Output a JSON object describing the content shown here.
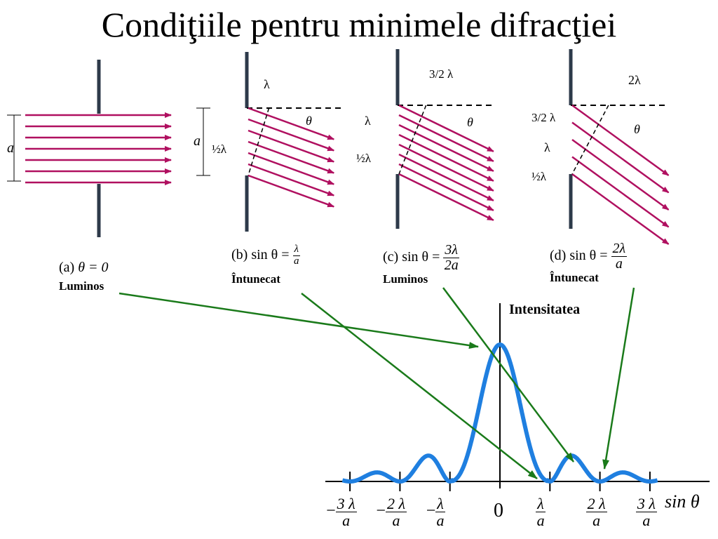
{
  "title": "Condiţiile pentru minimele  difracţiei",
  "panels": [
    {
      "id": "a",
      "caption_prefix": "(a)",
      "condition": "θ = 0",
      "state": "Luminos"
    },
    {
      "id": "b",
      "caption_prefix": "(b)",
      "condition_lhs": "sin θ =",
      "condition_num": "λ",
      "condition_den": "a",
      "state": "Întunecat"
    },
    {
      "id": "c",
      "caption_prefix": "(c)",
      "condition_lhs": "sin θ =",
      "condition_num": "3λ",
      "condition_den": "2a",
      "state": "Luminos"
    },
    {
      "id": "d",
      "caption_prefix": "(d)",
      "condition_lhs": "sin θ =",
      "condition_num": "2λ",
      "condition_den": "a",
      "state": "Întunecat"
    }
  ],
  "panel_labels": {
    "a_width": "a",
    "half_lambda": "½λ",
    "lambda": "λ",
    "three_half_lambda": "3/2 λ",
    "two_lambda": "2λ",
    "theta": "θ"
  },
  "graph": {
    "ylabel": "Intensitatea",
    "xlabel": "sin θ",
    "ticks": [
      {
        "sign": "−",
        "num": "3 λ",
        "den": "a"
      },
      {
        "sign": "−",
        "num": "2 λ",
        "den": "a"
      },
      {
        "sign": "−",
        "num": "λ",
        "den": "a"
      },
      {
        "sign": "",
        "num": "0",
        "den": ""
      },
      {
        "sign": "",
        "num": "λ",
        "den": "a"
      },
      {
        "sign": "",
        "num": "2 λ",
        "den": "a"
      },
      {
        "sign": "",
        "num": "3 λ",
        "den": "a"
      }
    ]
  },
  "colors": {
    "ray": "#b01060",
    "curve": "#1f7fe0",
    "arrow": "#1a7a1a",
    "wall": "#2d3a4a"
  }
}
